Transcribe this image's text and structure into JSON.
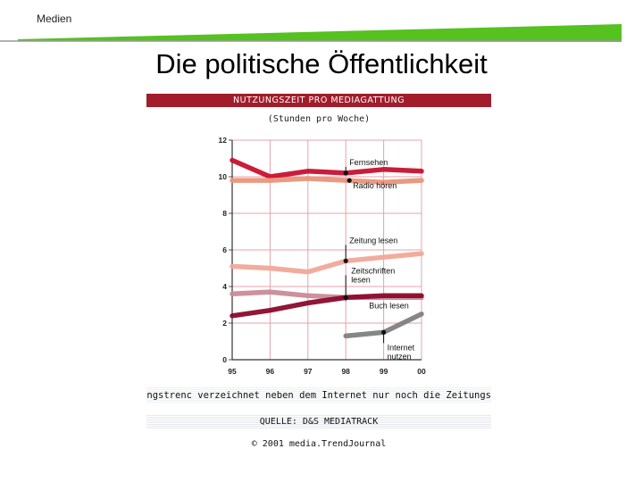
{
  "header": {
    "topic": "Medien",
    "title": "Die politische Öffentlichkeit"
  },
  "figure": {
    "title": "NUTZUNGSZEIT PRO MEDIAGATTUNG",
    "caption": "en Nutzungstrenc verzeichnet neben dem Internet nur noch die Zeitungs",
    "source": "QUELLE: D&S MEDIATRACK",
    "copyright": "© 2001 media.TrendJournal"
  },
  "colors": {
    "rule": "#55c21f",
    "title_band": "#a11d2b"
  },
  "chart_data": {
    "type": "line",
    "title": "NUTZUNGSZEIT PRO MEDIAGATTUNG",
    "subtitle": "(Stunden pro Woche)",
    "x": [
      "95",
      "96",
      "97",
      "98",
      "99",
      "00"
    ],
    "ylim": [
      0,
      12
    ],
    "yticks": [
      "0",
      "2",
      "4",
      "6",
      "8",
      "10",
      "12"
    ],
    "grid": true,
    "series": [
      {
        "name": "Fernsehen",
        "color": "#c8102e",
        "values": [
          10.9,
          10.0,
          10.3,
          10.2,
          10.4,
          10.3
        ]
      },
      {
        "name": "Radio hören",
        "color": "#e8957a",
        "values": [
          9.8,
          9.8,
          9.9,
          9.8,
          9.7,
          9.8
        ]
      },
      {
        "name": "Zeitung lesen",
        "color": "#f0a898",
        "values": [
          5.1,
          5.0,
          4.8,
          5.4,
          5.6,
          5.8
        ]
      },
      {
        "name": "Zeitschriften lesen",
        "color": "#c98b96",
        "values": [
          3.6,
          3.7,
          3.5,
          3.4,
          3.4,
          3.4
        ]
      },
      {
        "name": "Buch lesen",
        "color": "#8b0a2c",
        "values": [
          2.4,
          2.7,
          3.1,
          3.4,
          3.5,
          3.5
        ]
      },
      {
        "name": "Internet nutzen",
        "color": "#808080",
        "x": [
          "98",
          "99",
          "00"
        ],
        "values": [
          1.3,
          1.5,
          2.5
        ]
      }
    ]
  }
}
